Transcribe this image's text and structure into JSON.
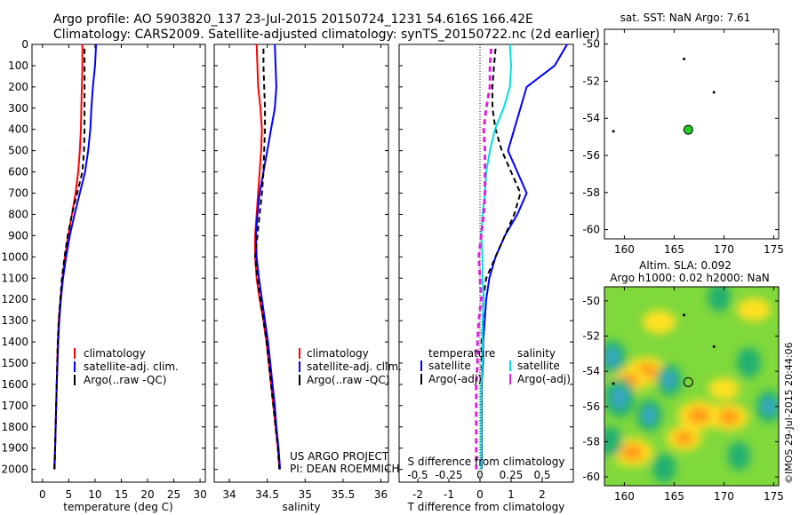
{
  "header": {
    "line1": "Argo profile: AO 5903820_137 23-Jul-2015 20150724_1231 54.616S 166.42E",
    "line2": "Climatology: CARS2009. Satellite-adjusted climatology: synTS_20150722.nc (2d earlier)"
  },
  "colors": {
    "climatology": "#ff0000",
    "satellite": "#0000ff",
    "argo": "#000000",
    "sat_diff": "#00e0e0",
    "argo_s_diff": "#e020e0",
    "marker": "#22cc22"
  },
  "chart_data": [
    {
      "type": "line",
      "name": "temperature",
      "xlabel": "temperature (deg C)",
      "ylabel": "",
      "xlim": [
        -2,
        31
      ],
      "ylim": [
        2060,
        0
      ],
      "xticks": [
        0,
        5,
        10,
        15,
        20,
        25,
        30
      ],
      "yticks": [
        0,
        100,
        200,
        300,
        400,
        500,
        600,
        700,
        800,
        900,
        1000,
        1100,
        1200,
        1300,
        1400,
        1500,
        1600,
        1700,
        1800,
        1900,
        2000
      ],
      "legend": [
        "climatology",
        "satellite-adj. clim.",
        "Argo(..raw -QC)"
      ],
      "series": [
        {
          "name": "climatology",
          "color_key": "climatology",
          "dash": false,
          "x": [
            7.6,
            7.6,
            7.5,
            7.4,
            7.3,
            7.1,
            6.8,
            6.3,
            5.6,
            4.9,
            4.3,
            3.8,
            3.4,
            3.1,
            2.9,
            2.8,
            2.7,
            2.6,
            2.5,
            2.4,
            2.2
          ],
          "y": [
            0,
            100,
            200,
            300,
            400,
            500,
            600,
            700,
            800,
            900,
            1000,
            1100,
            1200,
            1300,
            1400,
            1500,
            1600,
            1700,
            1800,
            1900,
            2000
          ]
        },
        {
          "name": "satellite-adj. clim.",
          "color_key": "satellite",
          "dash": false,
          "x": [
            10.2,
            10.0,
            9.6,
            9.3,
            9.1,
            8.7,
            8.1,
            7.1,
            6.1,
            5.2,
            4.5,
            3.9,
            3.5,
            3.2,
            3.0,
            2.85,
            2.7,
            2.6,
            2.5,
            2.4,
            2.3
          ],
          "y": [
            0,
            100,
            200,
            300,
            400,
            500,
            600,
            700,
            800,
            900,
            1000,
            1100,
            1200,
            1300,
            1400,
            1500,
            1600,
            1700,
            1800,
            1900,
            2000
          ]
        },
        {
          "name": "Argo(..raw -QC)",
          "color_key": "argo",
          "dash": true,
          "x": [
            8.0,
            8.0,
            8.0,
            8.0,
            8.0,
            7.9,
            7.6,
            6.6,
            5.6,
            4.8,
            4.2,
            3.7,
            3.4,
            3.1,
            2.9,
            2.8,
            2.7,
            2.6,
            2.5,
            2.4,
            2.3
          ],
          "y": [
            20,
            100,
            200,
            300,
            400,
            500,
            600,
            700,
            800,
            900,
            1000,
            1100,
            1200,
            1300,
            1400,
            1500,
            1600,
            1700,
            1800,
            1900,
            2000
          ]
        }
      ]
    },
    {
      "type": "line",
      "name": "salinity",
      "xlabel": "salinity",
      "xlim": [
        33.8,
        36.1
      ],
      "ylim": [
        2060,
        0
      ],
      "xticks": [
        34,
        34.5,
        35,
        35.5,
        36
      ],
      "legend": [
        "climatology",
        "satellite-adj. clim.",
        "Argo(..raw -QC)"
      ],
      "annotations": [
        "US ARGO PROJECT",
        "PI: DEAN ROEMMICH"
      ],
      "series": [
        {
          "name": "climatology",
          "color_key": "climatology",
          "dash": false,
          "x": [
            34.36,
            34.37,
            34.38,
            34.41,
            34.43,
            34.42,
            34.4,
            34.38,
            34.36,
            34.34,
            34.34,
            34.36,
            34.4,
            34.45,
            34.49,
            34.52,
            34.55,
            34.58,
            34.61,
            34.64,
            34.66
          ],
          "y": [
            0,
            100,
            200,
            300,
            400,
            500,
            600,
            700,
            800,
            900,
            1000,
            1100,
            1200,
            1300,
            1400,
            1500,
            1600,
            1700,
            1800,
            1900,
            2000
          ]
        },
        {
          "name": "satellite-adj. clim.",
          "color_key": "satellite",
          "dash": false,
          "x": [
            34.6,
            34.61,
            34.62,
            34.6,
            34.55,
            34.5,
            34.45,
            34.4,
            34.37,
            34.35,
            34.36,
            34.39,
            34.43,
            34.47,
            34.51,
            34.54,
            34.57,
            34.6,
            34.62,
            34.65,
            34.67
          ],
          "y": [
            0,
            100,
            200,
            300,
            400,
            500,
            600,
            700,
            800,
            900,
            1000,
            1100,
            1200,
            1300,
            1400,
            1500,
            1600,
            1700,
            1800,
            1900,
            2000
          ]
        },
        {
          "name": "Argo(..raw -QC)",
          "color_key": "argo",
          "dash": true,
          "x": [
            34.45,
            34.45,
            34.46,
            34.47,
            34.47,
            34.46,
            34.45,
            34.43,
            34.4,
            34.37,
            34.34,
            34.37,
            34.41,
            34.45,
            34.49,
            34.52,
            34.55,
            34.58,
            34.61,
            34.64,
            34.66
          ],
          "y": [
            20,
            100,
            200,
            300,
            400,
            500,
            600,
            700,
            800,
            900,
            1000,
            1100,
            1200,
            1300,
            1400,
            1500,
            1600,
            1700,
            1800,
            1900,
            2000
          ]
        }
      ]
    },
    {
      "type": "line",
      "name": "difference",
      "xlabel": "T difference from climatology",
      "xlabel_top": "S difference from climatology",
      "xlim": [
        -2.6,
        3.0
      ],
      "ylim": [
        2060,
        0
      ],
      "xticks_T": [
        -2,
        -1,
        0,
        1,
        2
      ],
      "xtick_labels_T": [
        "-2",
        "-1",
        "0",
        "1",
        "2"
      ],
      "xticks_S": [
        -0.5,
        -0.25,
        0,
        0.25,
        0.5
      ],
      "xtick_labels_S": [
        "-0.5",
        "-0.25",
        "0",
        "0.25",
        "0.5"
      ],
      "legend_headers": [
        "temperature",
        "salinity"
      ],
      "legend": [
        "satellite",
        "Argo(-adj)",
        "satellite",
        "Argo(-adj)"
      ],
      "series": [
        {
          "name": "satellite",
          "quantity": "T",
          "color_key": "satellite",
          "dash": false,
          "x": [
            2.8,
            2.4,
            1.5,
            1.3,
            1.1,
            0.9,
            1.2,
            1.5,
            1.2,
            0.8,
            0.5,
            0.3,
            0.2,
            0.15,
            0.1,
            0.1,
            0.05,
            0.05,
            0.05,
            0.05,
            0.05
          ],
          "y": [
            0,
            100,
            200,
            300,
            400,
            500,
            600,
            700,
            800,
            900,
            1000,
            1100,
            1200,
            1300,
            1400,
            1500,
            1600,
            1700,
            1800,
            1900,
            2000
          ]
        },
        {
          "name": "Argo(-adj)",
          "quantity": "T",
          "color_key": "argo",
          "dash": true,
          "x": [
            0.5,
            0.45,
            0.4,
            0.4,
            0.5,
            0.7,
            1.0,
            1.3,
            1.1,
            0.8,
            0.5,
            0.2,
            0.1,
            0.1,
            0.05,
            0.05,
            0.05,
            0.05,
            0.05,
            0.05,
            0.05
          ],
          "y": [
            20,
            100,
            200,
            300,
            400,
            500,
            600,
            700,
            800,
            900,
            1000,
            1100,
            1200,
            1300,
            1400,
            1500,
            1600,
            1700,
            1800,
            1900,
            2000
          ]
        },
        {
          "name": "satellite",
          "quantity": "S",
          "color_key": "sat_diff",
          "dash": false,
          "x": [
            0.24,
            0.25,
            0.24,
            0.19,
            0.12,
            0.08,
            0.05,
            0.04,
            0.02,
            0.01,
            0.02,
            0.02,
            0.03,
            0.02,
            0.02,
            0.02,
            0.01,
            0.01,
            0.01,
            0.01,
            0.01
          ],
          "y": [
            0,
            100,
            200,
            300,
            400,
            500,
            600,
            700,
            800,
            900,
            1000,
            1100,
            1200,
            1300,
            1400,
            1500,
            1600,
            1700,
            1800,
            1900,
            2000
          ]
        },
        {
          "name": "Argo(-adj)",
          "quantity": "S",
          "color_key": "argo_s_diff",
          "dash": true,
          "x": [
            0.09,
            0.08,
            0.08,
            0.05,
            0.03,
            0.04,
            0.04,
            0.04,
            0.03,
            0.01,
            -0.01,
            0.0,
            0.01,
            -0.01,
            -0.02,
            -0.02,
            -0.03,
            -0.03,
            -0.03,
            -0.03,
            -0.03
          ],
          "y": [
            20,
            100,
            200,
            300,
            400,
            500,
            600,
            700,
            800,
            900,
            1000,
            1100,
            1200,
            1300,
            1400,
            1500,
            1600,
            1700,
            1800,
            1900,
            2000
          ]
        }
      ]
    },
    {
      "type": "scatter",
      "name": "sst-map",
      "title": "sat. SST: NaN Argo: 7.61",
      "xlim": [
        158,
        175.5
      ],
      "ylim": [
        -60.5,
        -49.2
      ],
      "xticks": [
        160,
        165,
        170,
        175
      ],
      "yticks": [
        -50,
        -52,
        -54,
        -56,
        -58,
        -60
      ],
      "points": [
        {
          "x": 166.0,
          "y": -50.8,
          "kind": "track"
        },
        {
          "x": 169.0,
          "y": -52.6,
          "kind": "track"
        },
        {
          "x": 158.9,
          "y": -54.7,
          "kind": "track"
        },
        {
          "x": 166.42,
          "y": -54.616,
          "kind": "profile"
        }
      ]
    },
    {
      "type": "heatmap",
      "name": "sla-map",
      "title": "Altim. SLA: 0.092",
      "subtitle": "Argo h1000: 0.02 h2000: NaN",
      "side_label": "©IMOS 29-Jul-2015 20:44:06",
      "xlim": [
        158,
        175.5
      ],
      "ylim": [
        -60.5,
        -49.2
      ],
      "xticks": [
        160,
        165,
        170,
        175
      ],
      "yticks": [
        -50,
        -52,
        -54,
        -56,
        -58,
        -60
      ],
      "points": [
        {
          "x": 166.0,
          "y": -50.8,
          "kind": "track"
        },
        {
          "x": 169.0,
          "y": -52.6,
          "kind": "track"
        },
        {
          "x": 158.9,
          "y": -54.7,
          "kind": "track"
        },
        {
          "x": 166.42,
          "y": -54.616,
          "kind": "profile"
        }
      ],
      "hotspots": [
        {
          "x": 162.2,
          "y": -54.0,
          "v": 0.9
        },
        {
          "x": 160.5,
          "y": -54.5,
          "v": 0.6
        },
        {
          "x": 167.5,
          "y": -56.5,
          "v": 1.0
        },
        {
          "x": 170.5,
          "y": -56.6,
          "v": 0.8
        },
        {
          "x": 160.8,
          "y": -58.6,
          "v": 0.9
        },
        {
          "x": 166.0,
          "y": -57.8,
          "v": 0.6
        },
        {
          "x": 163.5,
          "y": -51.2,
          "v": 0.5
        },
        {
          "x": 173.0,
          "y": -50.5,
          "v": 0.5
        },
        {
          "x": 170.0,
          "y": -55.0,
          "v": 0.35
        },
        {
          "x": 159.5,
          "y": -55.5,
          "v": -1.0
        },
        {
          "x": 158.8,
          "y": -53.2,
          "v": -0.7
        },
        {
          "x": 164.5,
          "y": -54.5,
          "v": -0.6
        },
        {
          "x": 162.5,
          "y": -56.5,
          "v": -0.6
        },
        {
          "x": 172.5,
          "y": -53.5,
          "v": -0.5
        },
        {
          "x": 169.5,
          "y": -49.8,
          "v": -0.4
        },
        {
          "x": 174.5,
          "y": -56.0,
          "v": -0.6
        },
        {
          "x": 164.0,
          "y": -59.5,
          "v": -0.45
        },
        {
          "x": 171.5,
          "y": -58.8,
          "v": -0.4
        },
        {
          "x": 158.6,
          "y": -58.0,
          "v": -0.5
        }
      ]
    }
  ]
}
